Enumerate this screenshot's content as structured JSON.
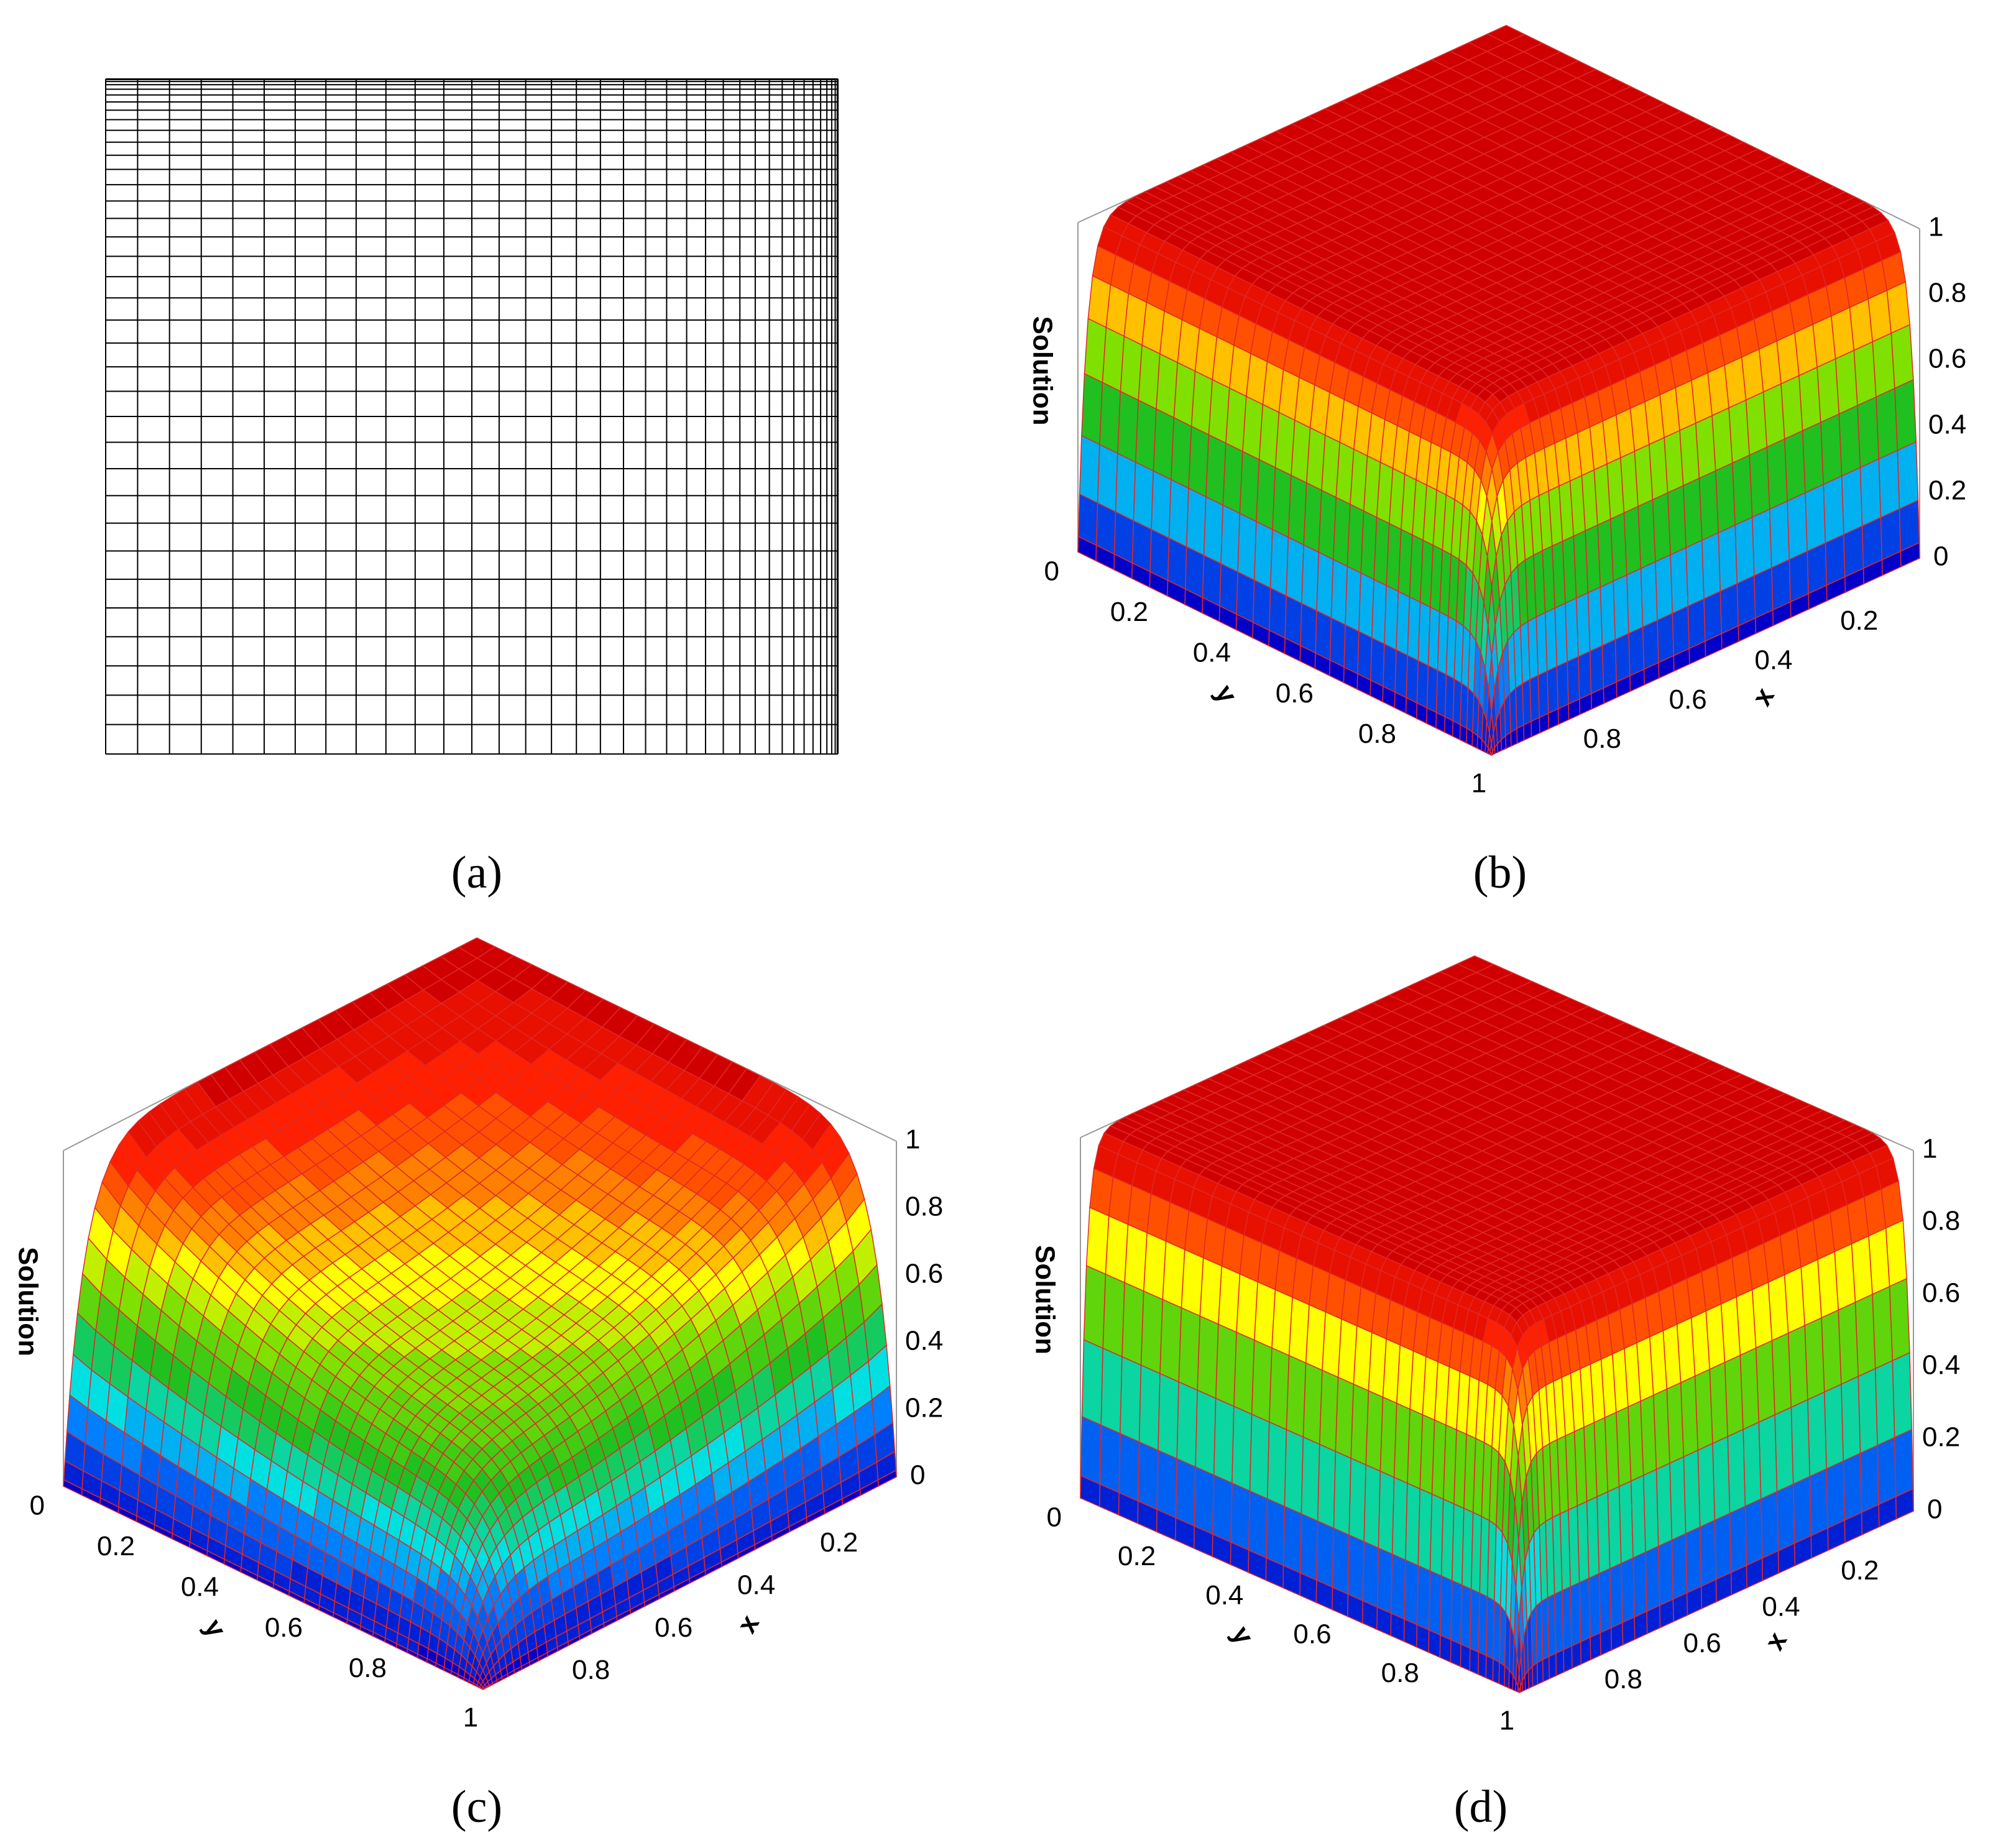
{
  "panels": [
    {
      "label": "(a)"
    },
    {
      "label": "(b)",
      "z_label": "Solution",
      "x_label": "x",
      "y_label": "y",
      "z_ticks": [
        0.2,
        0.4,
        0.6,
        0.8,
        1
      ],
      "y_ticks": [
        0,
        0.2,
        0.4,
        0.6,
        0.8,
        1
      ],
      "x_ticks": [
        0,
        0.2,
        0.4,
        0.6,
        0.8
      ]
    },
    {
      "label": "(c)",
      "z_label": "Solution",
      "x_label": "x",
      "y_label": "y",
      "z_ticks": [
        0.2,
        0.4,
        0.6,
        0.8,
        1
      ],
      "y_ticks": [
        0,
        0.2,
        0.4,
        0.6,
        0.8,
        1
      ],
      "x_ticks": [
        0,
        0.2,
        0.4,
        0.6,
        0.8
      ]
    },
    {
      "label": "(d)",
      "z_label": "Solution",
      "x_label": "x",
      "y_label": "y",
      "z_ticks": [
        0.2,
        0.4,
        0.6,
        0.8,
        1
      ],
      "y_ticks": [
        0,
        0.2,
        0.4,
        0.6,
        0.8,
        1
      ],
      "x_ticks": [
        0,
        0.2,
        0.4,
        0.6,
        0.8
      ]
    }
  ]
}
